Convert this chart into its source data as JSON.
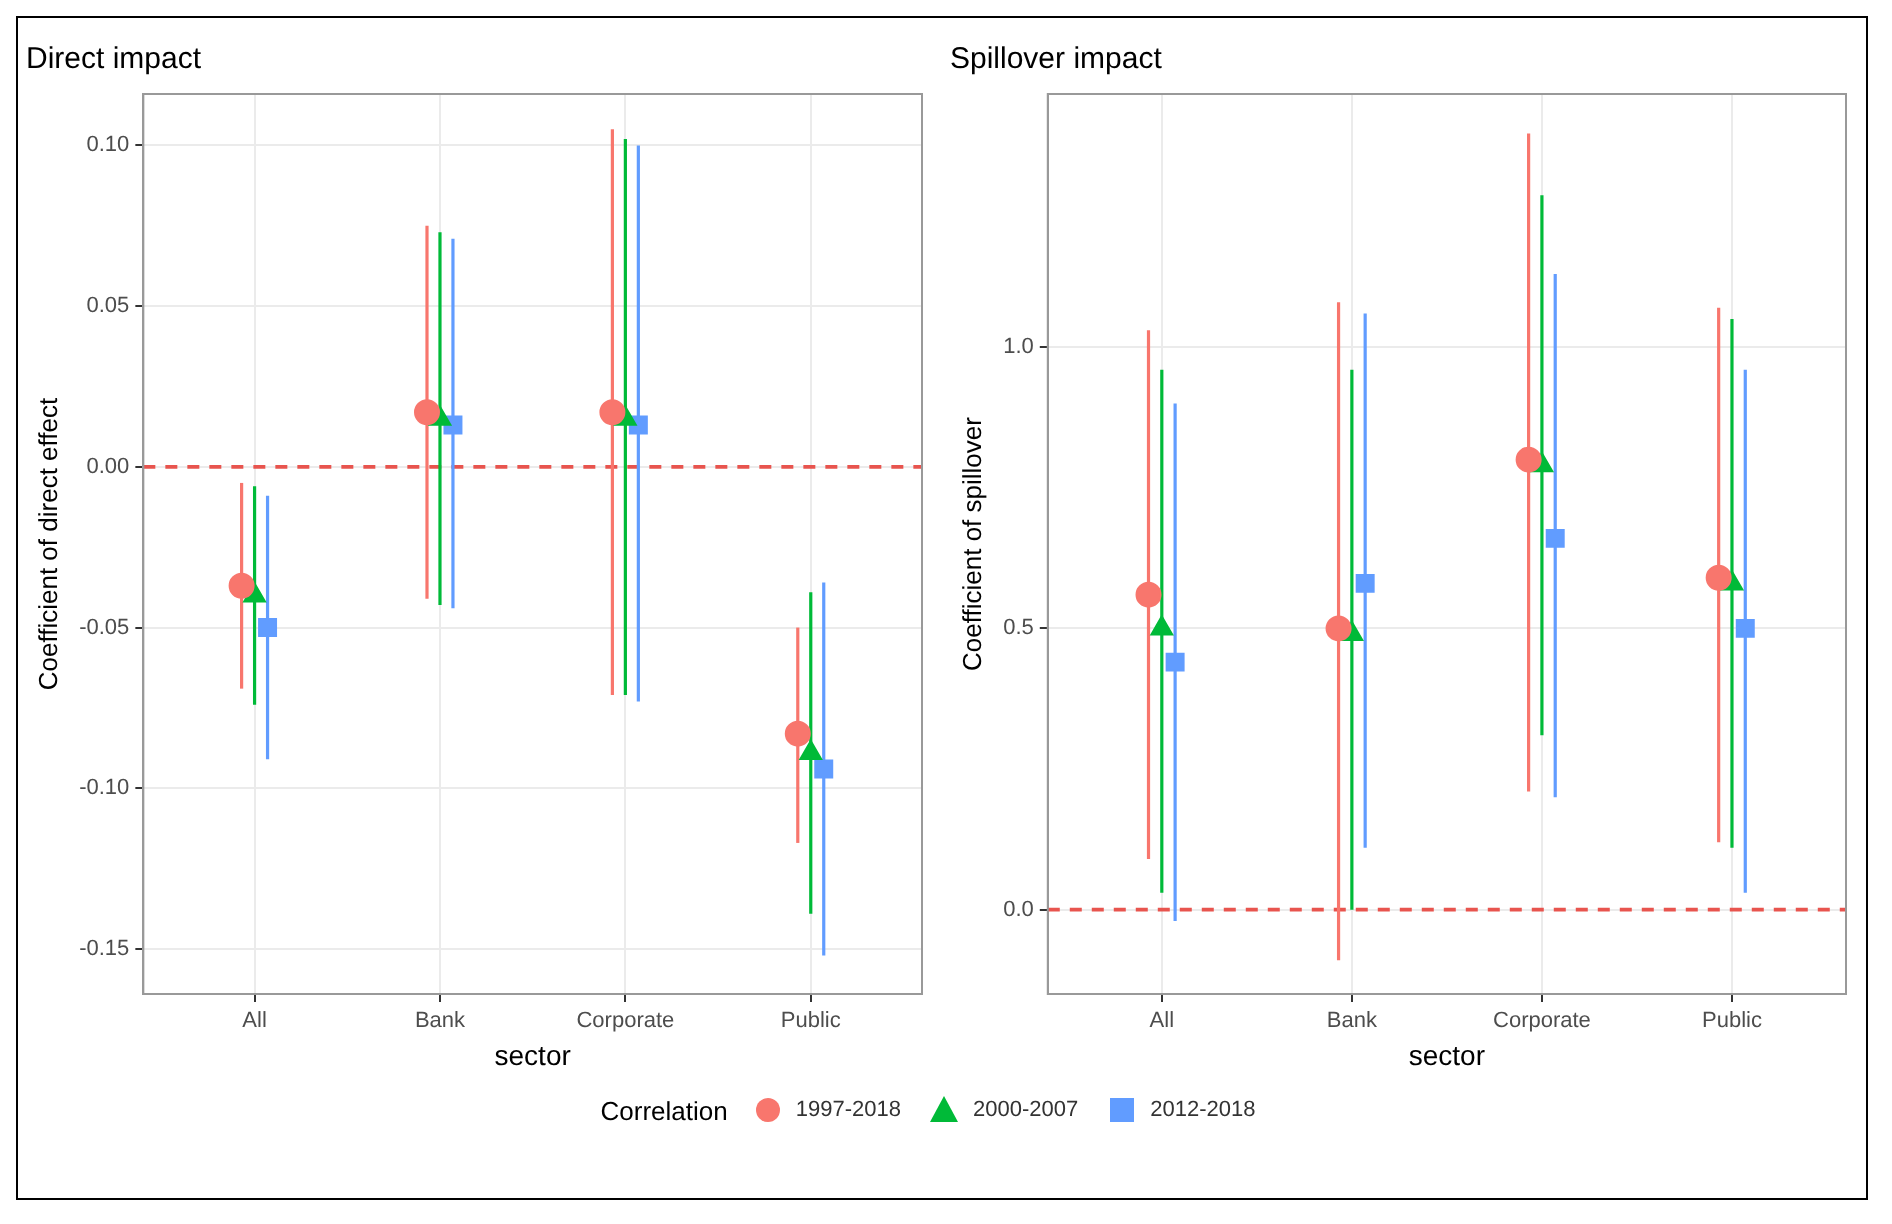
{
  "chart_data": [
    {
      "type": "scatter",
      "title": "Direct impact",
      "xlabel": "sector",
      "ylabel": "Coefficient of direct effect",
      "categories": [
        "All",
        "Bank",
        "Corporate",
        "Public"
      ],
      "ylim": [
        -0.164,
        0.116
      ],
      "yticks": [
        {
          "value": 0.1,
          "label": "0.10"
        },
        {
          "value": 0.05,
          "label": "0.05"
        },
        {
          "value": 0,
          "label": "0.00"
        },
        {
          "value": -0.05,
          "label": "-0.05"
        },
        {
          "value": -0.1,
          "label": "-0.10"
        },
        {
          "value": -0.15,
          "label": "-0.15"
        }
      ],
      "grid": true,
      "legend": "bottom",
      "legend_title": "Correlation",
      "ref_lines": [
        {
          "axis": "y",
          "value": 0,
          "color": "#e8544e",
          "line_style": "dashed"
        }
      ],
      "series": [
        {
          "name": "1997-2018",
          "color": "#f8766d",
          "marker": "circle",
          "values": [
            -0.037,
            0.017,
            0.017,
            -0.083
          ],
          "errors": [
            [
              -0.069,
              -0.005
            ],
            [
              -0.041,
              0.075
            ],
            [
              -0.071,
              0.105
            ],
            [
              -0.117,
              -0.05
            ]
          ]
        },
        {
          "name": "2000-2007",
          "color": "#00ba38",
          "marker": "triangle",
          "values": [
            -0.04,
            0.015,
            0.015,
            -0.089
          ],
          "errors": [
            [
              -0.074,
              -0.006
            ],
            [
              -0.043,
              0.073
            ],
            [
              -0.071,
              0.102
            ],
            [
              -0.139,
              -0.039
            ]
          ]
        },
        {
          "name": "2012-2018",
          "color": "#619cff",
          "marker": "square",
          "values": [
            -0.05,
            0.013,
            0.013,
            -0.094
          ],
          "errors": [
            [
              -0.091,
              -0.009
            ],
            [
              -0.044,
              0.071
            ],
            [
              -0.073,
              0.1
            ],
            [
              -0.152,
              -0.036
            ]
          ]
        }
      ]
    },
    {
      "type": "scatter",
      "title": "Spillover impact",
      "xlabel": "sector",
      "ylabel": "Coefficient of spillover",
      "categories": [
        "All",
        "Bank",
        "Corporate",
        "Public"
      ],
      "ylim": [
        -0.15,
        1.45
      ],
      "yticks": [
        {
          "value": 0,
          "label": "0.0"
        },
        {
          "value": 0.5,
          "label": "0.5"
        },
        {
          "value": 1,
          "label": "1.0"
        }
      ],
      "grid": true,
      "ref_lines": [
        {
          "axis": "y",
          "value": 0,
          "color": "#e8544e",
          "line_style": "dashed"
        }
      ],
      "series": [
        {
          "color": "#f8766d",
          "marker": "circle",
          "values": [
            0.56,
            0.5,
            0.8,
            0.59
          ],
          "errors": [
            [
              0.09,
              1.03
            ],
            [
              -0.09,
              1.08
            ],
            [
              0.21,
              1.38
            ],
            [
              0.12,
              1.07
            ]
          ]
        },
        {
          "color": "#00ba38",
          "marker": "triangle",
          "values": [
            0.5,
            0.49,
            0.79,
            0.58
          ],
          "errors": [
            [
              0.03,
              0.96
            ],
            [
              0,
              0.96
            ],
            [
              0.31,
              1.27
            ],
            [
              0.11,
              1.05
            ]
          ]
        },
        {
          "color": "#619cff",
          "marker": "square",
          "values": [
            0.44,
            0.58,
            0.66,
            0.5
          ],
          "errors": [
            [
              -0.02,
              0.9
            ],
            [
              0.11,
              1.06
            ],
            [
              0.2,
              1.13
            ],
            [
              0.03,
              0.96
            ]
          ]
        }
      ]
    }
  ]
}
